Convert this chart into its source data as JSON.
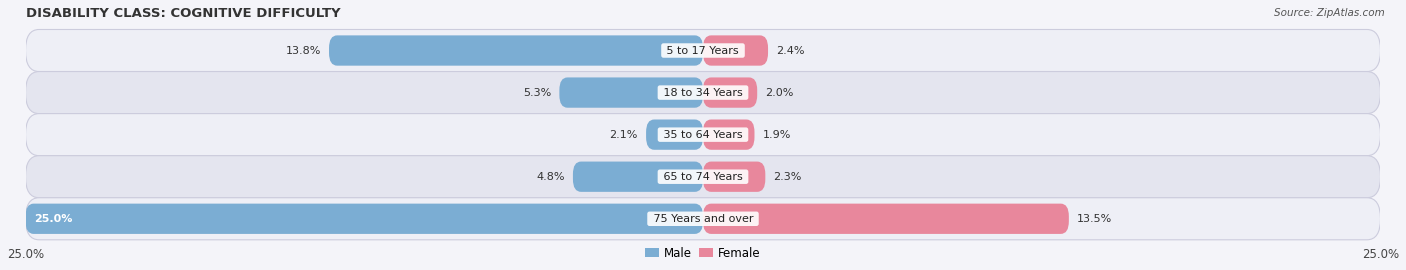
{
  "title": "DISABILITY CLASS: COGNITIVE DIFFICULTY",
  "source": "Source: ZipAtlas.com",
  "categories": [
    "5 to 17 Years",
    "18 to 34 Years",
    "35 to 64 Years",
    "65 to 74 Years",
    "75 Years and over"
  ],
  "male_values": [
    13.8,
    5.3,
    2.1,
    4.8,
    25.0
  ],
  "female_values": [
    2.4,
    2.0,
    1.9,
    2.3,
    13.5
  ],
  "max_val": 25.0,
  "male_color": "#7badd3",
  "female_color": "#e8879c",
  "male_label": "Male",
  "female_label": "Female",
  "bg_colors": [
    "#eeeff6",
    "#e4e5ef"
  ],
  "title_fontsize": 9.5,
  "bar_height": 0.72,
  "axis_label_fontsize": 8.5
}
